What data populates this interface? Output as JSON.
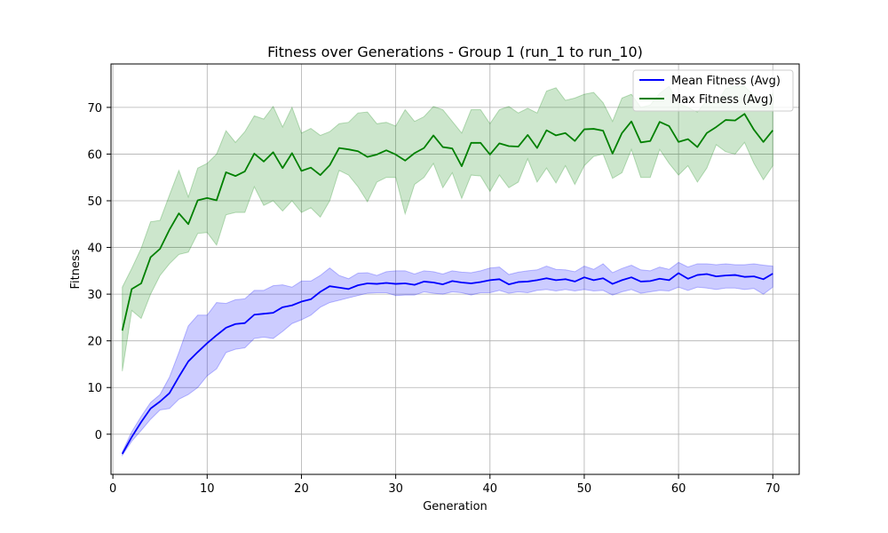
{
  "chart_data": {
    "type": "line",
    "title": "Fitness over Generations - Group 1 (run_1 to run_10)",
    "xlabel": "Generation",
    "ylabel": "Fitness",
    "xlim": [
      -0.2,
      72.8
    ],
    "ylim": [
      -8.6,
      79.3
    ],
    "xticks": [
      0,
      10,
      20,
      30,
      40,
      50,
      60,
      70
    ],
    "yticks": [
      0,
      10,
      20,
      30,
      40,
      50,
      60,
      70
    ],
    "grid": true,
    "legend_position": "top-right",
    "x": [
      1,
      2,
      3,
      4,
      5,
      6,
      7,
      8,
      9,
      10,
      11,
      12,
      13,
      14,
      15,
      16,
      17,
      18,
      19,
      20,
      21,
      22,
      23,
      24,
      25,
      26,
      27,
      28,
      29,
      30,
      31,
      32,
      33,
      34,
      35,
      36,
      37,
      38,
      39,
      40,
      41,
      42,
      43,
      44,
      45,
      46,
      47,
      48,
      49,
      50,
      51,
      52,
      53,
      54,
      55,
      56,
      57,
      58,
      59,
      60,
      61,
      62,
      63,
      64,
      65,
      66,
      67,
      68,
      69,
      70
    ],
    "series": [
      {
        "name": "Mean Fitness (Avg)",
        "color": "#0000ff",
        "band_color": "#0000ff",
        "values": [
          -4.2,
          -0.6,
          2.6,
          5.5,
          7.0,
          8.8,
          12.3,
          15.6,
          17.6,
          19.5,
          21.2,
          22.8,
          23.6,
          23.8,
          25.6,
          25.8,
          26.0,
          27.2,
          27.6,
          28.4,
          28.9,
          30.5,
          31.7,
          31.4,
          31.1,
          31.9,
          32.3,
          32.2,
          32.4,
          32.2,
          32.3,
          32.0,
          32.7,
          32.5,
          32.1,
          32.8,
          32.5,
          32.3,
          32.6,
          33.0,
          33.2,
          32.1,
          32.6,
          32.7,
          33.0,
          33.4,
          33.0,
          33.2,
          32.7,
          33.6,
          33.0,
          33.4,
          32.2,
          33.0,
          33.6,
          32.7,
          32.8,
          33.3,
          33.0,
          34.5,
          33.3,
          34.1,
          34.3,
          33.8,
          34.0,
          34.1,
          33.7,
          33.8,
          33.2,
          34.4
        ],
        "lower": [
          -4.5,
          -1.5,
          0.8,
          3.2,
          5.2,
          5.5,
          7.5,
          8.5,
          10.0,
          12.5,
          14.0,
          17.5,
          18.2,
          18.5,
          20.5,
          20.8,
          20.5,
          22.0,
          23.7,
          24.5,
          25.5,
          27.2,
          28.2,
          28.7,
          29.2,
          29.7,
          30.2,
          30.3,
          30.3,
          29.7,
          29.8,
          29.8,
          30.5,
          30.2,
          30.0,
          30.5,
          30.3,
          29.8,
          30.3,
          30.3,
          30.8,
          30.2,
          30.5,
          30.3,
          30.8,
          31.0,
          30.7,
          31.0,
          30.7,
          31.0,
          30.7,
          30.8,
          29.8,
          30.5,
          31.0,
          30.2,
          30.5,
          30.8,
          30.7,
          31.5,
          30.8,
          31.5,
          31.3,
          31.0,
          31.3,
          31.3,
          31.0,
          31.2,
          30.0,
          31.5
        ],
        "upper": [
          -3.8,
          0.5,
          3.8,
          6.8,
          8.5,
          12.2,
          17.5,
          23.2,
          25.5,
          25.5,
          28.2,
          28.0,
          28.8,
          29.0,
          30.8,
          30.8,
          31.8,
          32.0,
          31.5,
          32.8,
          32.8,
          34.0,
          35.6,
          34.0,
          33.3,
          34.5,
          34.6,
          34.0,
          34.8,
          35.0,
          35.0,
          34.3,
          35.0,
          34.8,
          34.3,
          35.0,
          34.7,
          34.6,
          35.0,
          35.6,
          35.8,
          34.2,
          34.7,
          35.0,
          35.2,
          36.0,
          35.3,
          35.2,
          34.8,
          36.0,
          35.3,
          36.5,
          34.6,
          35.5,
          36.2,
          35.2,
          35.0,
          35.8,
          35.3,
          36.8,
          35.8,
          36.5,
          36.5,
          36.3,
          36.5,
          36.3,
          36.3,
          36.5,
          36.2,
          36.0
        ]
      },
      {
        "name": "Max Fitness (Avg)",
        "color": "#008000",
        "band_color": "#008000",
        "values": [
          22.2,
          31.1,
          32.3,
          37.9,
          39.7,
          43.8,
          47.3,
          45.0,
          50.1,
          50.6,
          50.1,
          56.1,
          55.3,
          56.3,
          60.1,
          58.4,
          60.4,
          57.0,
          60.2,
          56.4,
          57.1,
          55.5,
          57.6,
          61.3,
          61.0,
          60.6,
          59.4,
          59.9,
          60.8,
          59.9,
          58.6,
          60.2,
          61.3,
          64.0,
          61.5,
          61.2,
          57.4,
          62.4,
          62.4,
          59.9,
          62.3,
          61.7,
          61.6,
          64.1,
          61.3,
          65.1,
          64.0,
          64.5,
          62.8,
          65.3,
          65.4,
          65.0,
          60.1,
          64.5,
          67.0,
          62.5,
          62.8,
          66.9,
          66.0,
          62.6,
          63.2,
          61.5,
          64.5,
          65.8,
          67.3,
          67.2,
          68.6,
          65.2,
          62.6,
          65.1
        ],
        "lower": [
          13.5,
          26.5,
          24.8,
          30.0,
          34.0,
          36.5,
          38.5,
          39.0,
          43.0,
          43.2,
          40.5,
          47.0,
          47.5,
          47.5,
          53.0,
          49.0,
          50.0,
          47.8,
          50.0,
          47.5,
          48.5,
          46.5,
          50.0,
          56.5,
          55.5,
          53.0,
          49.8,
          54.0,
          55.0,
          55.0,
          47.2,
          53.5,
          55.0,
          58.0,
          52.8,
          56.0,
          50.5,
          55.5,
          55.3,
          52.0,
          55.5,
          52.8,
          54.0,
          59.0,
          54.0,
          57.0,
          53.8,
          57.5,
          53.5,
          57.5,
          59.5,
          60.0,
          54.8,
          56.0,
          61.0,
          55.0,
          55.0,
          61.0,
          58.0,
          55.5,
          57.5,
          54.0,
          57.0,
          62.0,
          60.5,
          60.0,
          62.5,
          58.0,
          54.5,
          57.5
        ],
        "upper": [
          31.5,
          35.5,
          39.8,
          45.5,
          45.8,
          51.2,
          56.5,
          50.8,
          57.0,
          58.0,
          60.0,
          65.0,
          62.5,
          64.8,
          68.2,
          67.5,
          70.2,
          65.8,
          70.0,
          64.5,
          65.5,
          64.0,
          64.8,
          66.5,
          66.8,
          68.8,
          69.0,
          66.5,
          66.8,
          66.0,
          69.5,
          67.0,
          68.0,
          70.2,
          69.5,
          67.0,
          64.5,
          69.5,
          69.5,
          66.5,
          69.5,
          70.2,
          68.8,
          69.8,
          68.8,
          73.5,
          74.2,
          71.5,
          72.0,
          72.8,
          73.2,
          71.0,
          67.0,
          72.0,
          72.8,
          70.0,
          70.5,
          73.0,
          74.5,
          70.8,
          70.0,
          69.0,
          71.5,
          70.8,
          74.0,
          74.5,
          74.5,
          72.5,
          70.5,
          73.0
        ]
      }
    ]
  }
}
